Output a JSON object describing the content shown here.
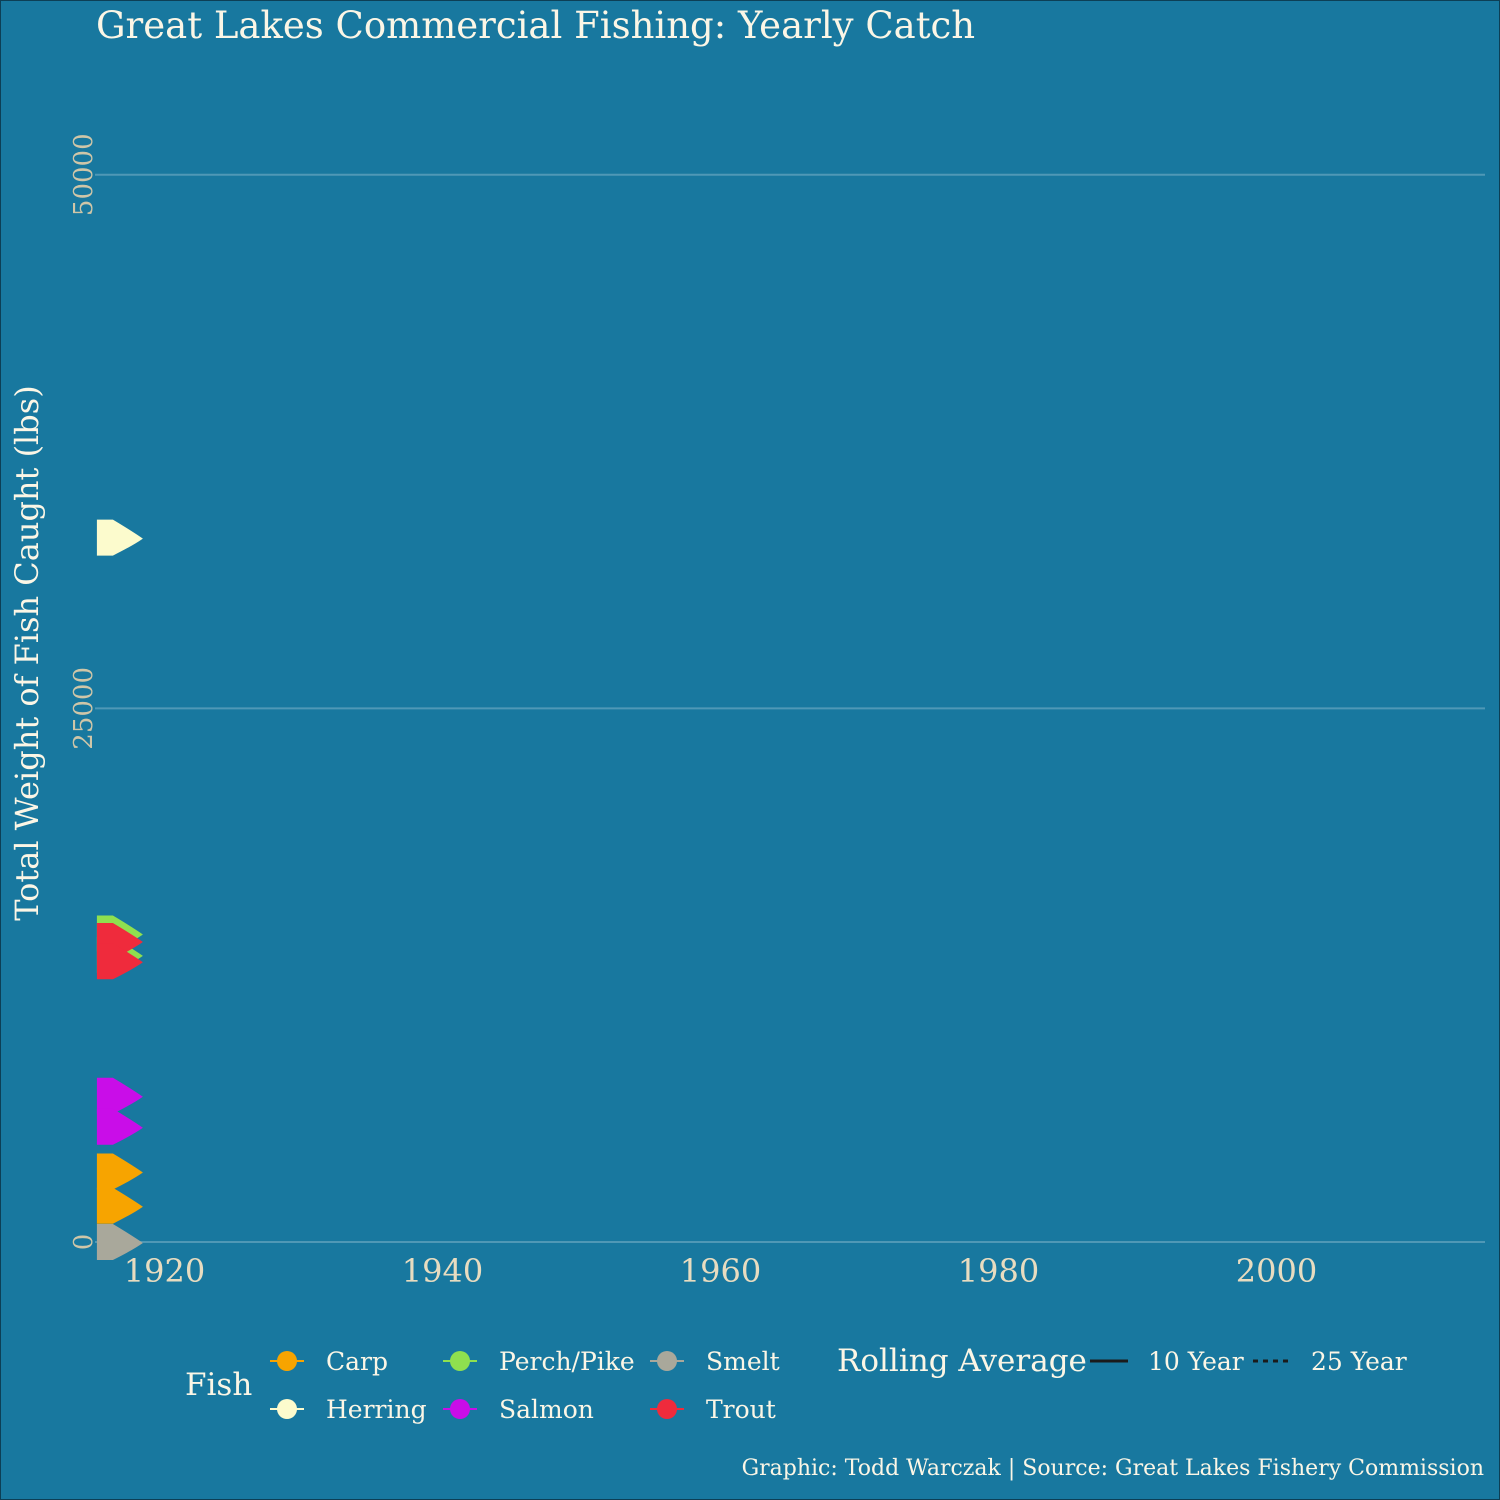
{
  "title": "Great Lakes Commercial Fishing: Yearly Catch",
  "caption": "Graphic: Todd Warczak | Source: Great Lakes Fishery Commission",
  "colors": {
    "background": "#18789f",
    "gridline": "#4f98b6",
    "Carp": "#f7a400",
    "Herring": "#fcfbcd",
    "Perch/Pike": "#8fe04f",
    "Salmon": "#c90de8",
    "Smelt": "#a9a89b",
    "Trout": "#ef2b3c"
  },
  "chart_data": {
    "type": "scatter",
    "title": "Great Lakes Commercial Fishing: Yearly Catch",
    "xlabel": "",
    "ylabel": "Total Weight of Fish Caught (lbs)",
    "xlim": [
      1915,
      2015
    ],
    "ylim": [
      0,
      53500
    ],
    "x_ticks": [
      "1920",
      "1940",
      "1960",
      "1980",
      "2000"
    ],
    "y_ticks": [
      "0",
      "25000",
      "50000"
    ],
    "grid": "horizontal major lines",
    "legend_position": "bottom",
    "legend_fish": {
      "title": "Fish",
      "entries": [
        "Carp",
        "Herring",
        "Perch/Pike",
        "Salmon",
        "Smelt",
        "Trout"
      ]
    },
    "legend_lines": {
      "title": "Rolling Average",
      "entries": [
        {
          "label": "10 Year",
          "style": "solid"
        },
        {
          "label": "25 Year",
          "style": "dashed"
        }
      ]
    },
    "series": [
      {
        "name": "Herring",
        "points": [
          {
            "x": 1916,
            "y": 33000
          }
        ]
      },
      {
        "name": "Perch/Pike",
        "points": [
          {
            "x": 1916,
            "y": 14450
          },
          {
            "x": 1916,
            "y": 13450
          }
        ]
      },
      {
        "name": "Trout",
        "points": [
          {
            "x": 1916,
            "y": 14100
          },
          {
            "x": 1916,
            "y": 13150
          }
        ]
      },
      {
        "name": "Salmon",
        "points": [
          {
            "x": 1916,
            "y": 6850
          },
          {
            "x": 1916,
            "y": 5400
          }
        ]
      },
      {
        "name": "Carp",
        "points": [
          {
            "x": 1916,
            "y": 3300
          },
          {
            "x": 1916,
            "y": 1700
          }
        ]
      },
      {
        "name": "Smelt",
        "points": [
          {
            "x": 1916,
            "y": 0
          }
        ]
      }
    ]
  }
}
